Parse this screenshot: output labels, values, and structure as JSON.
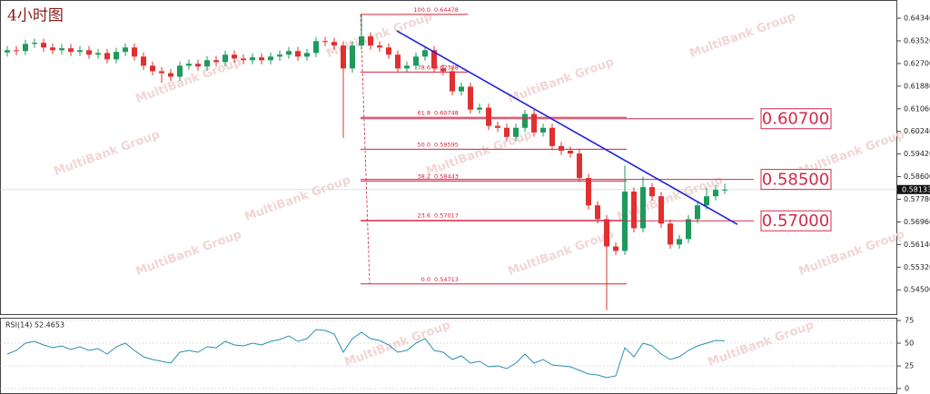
{
  "chart_data": [
    {
      "type": "candlestick",
      "title": "4小时图",
      "watermark": "MultiBank Group",
      "up_color": "#1e9a5c",
      "down_color": "#e0302f",
      "open": [
        0.631,
        0.6318,
        0.6315,
        0.6341,
        0.6345,
        0.6328,
        0.6318,
        0.6325,
        0.6312,
        0.6318,
        0.6302,
        0.6308,
        0.6285,
        0.6312,
        0.6328,
        0.6295,
        0.6262,
        0.6242,
        0.6235,
        0.6222,
        0.6262,
        0.6269,
        0.6259,
        0.6282,
        0.6275,
        0.6302,
        0.6288,
        0.6282,
        0.6292,
        0.6282,
        0.6295,
        0.6302,
        0.6315,
        0.6295,
        0.6308,
        0.6351,
        0.6348,
        0.6335,
        0.6252,
        0.6335,
        0.6368,
        0.6335,
        0.6328,
        0.6302,
        0.6252,
        0.6262,
        0.6295,
        0.6318,
        0.6252,
        0.6242,
        0.6169,
        0.6186,
        0.6103,
        0.611,
        0.6044,
        0.6037,
        0.6004,
        0.6037,
        0.6087,
        0.602,
        0.6037,
        0.5971,
        0.5954,
        0.5944,
        0.5855,
        0.5756,
        0.5706,
        0.5607,
        0.5591,
        0.5806,
        0.5673,
        0.5822,
        0.5789,
        0.569,
        0.5614,
        0.5634,
        0.5706,
        0.5756,
        0.5789,
        0.5812
      ],
      "high": [
        0.6333,
        0.6333,
        0.6356,
        0.636,
        0.636,
        0.6343,
        0.634,
        0.634,
        0.6333,
        0.6333,
        0.6323,
        0.6323,
        0.6327,
        0.6343,
        0.6343,
        0.631,
        0.6277,
        0.6257,
        0.625,
        0.6277,
        0.6284,
        0.6284,
        0.6297,
        0.6297,
        0.6317,
        0.6317,
        0.6303,
        0.6307,
        0.6307,
        0.631,
        0.6317,
        0.633,
        0.633,
        0.6323,
        0.6366,
        0.6366,
        0.6363,
        0.635,
        0.635,
        0.6448,
        0.6383,
        0.635,
        0.6343,
        0.6317,
        0.6277,
        0.631,
        0.6333,
        0.6333,
        0.6267,
        0.6257,
        0.6201,
        0.6201,
        0.6125,
        0.6125,
        0.6059,
        0.6052,
        0.6052,
        0.6102,
        0.6102,
        0.6052,
        0.6052,
        0.5986,
        0.5969,
        0.5959,
        0.587,
        0.5771,
        0.5721,
        0.5622,
        0.59,
        0.5821,
        0.586,
        0.5837,
        0.5804,
        0.5705,
        0.5649,
        0.5721,
        0.5771,
        0.582,
        0.583,
        0.5835
      ],
      "low": [
        0.6295,
        0.63,
        0.63,
        0.6326,
        0.6313,
        0.6303,
        0.6303,
        0.6297,
        0.6297,
        0.6287,
        0.6287,
        0.627,
        0.627,
        0.6297,
        0.628,
        0.6247,
        0.6227,
        0.62,
        0.6207,
        0.6207,
        0.6247,
        0.6244,
        0.6244,
        0.626,
        0.626,
        0.6273,
        0.6267,
        0.6267,
        0.6267,
        0.6267,
        0.628,
        0.6287,
        0.628,
        0.628,
        0.6293,
        0.6333,
        0.632,
        0.6,
        0.6237,
        0.632,
        0.632,
        0.6313,
        0.6287,
        0.6237,
        0.6237,
        0.6247,
        0.628,
        0.6237,
        0.6227,
        0.6154,
        0.6154,
        0.6088,
        0.6088,
        0.6029,
        0.6022,
        0.5989,
        0.5989,
        0.6022,
        0.6005,
        0.6005,
        0.5956,
        0.5939,
        0.5929,
        0.584,
        0.5741,
        0.5691,
        0.5376,
        0.5576,
        0.5576,
        0.5658,
        0.5658,
        0.5774,
        0.5675,
        0.5599,
        0.5599,
        0.5619,
        0.5691,
        0.5741,
        0.5774,
        0.5797
      ],
      "close": [
        0.6318,
        0.6315,
        0.6341,
        0.6345,
        0.6328,
        0.6318,
        0.6325,
        0.6312,
        0.6318,
        0.6302,
        0.6308,
        0.6285,
        0.6312,
        0.6328,
        0.6295,
        0.6262,
        0.6242,
        0.6235,
        0.6222,
        0.6262,
        0.6269,
        0.6259,
        0.6282,
        0.6275,
        0.6302,
        0.6288,
        0.6282,
        0.6292,
        0.6282,
        0.6295,
        0.6302,
        0.6315,
        0.6295,
        0.6308,
        0.6351,
        0.6348,
        0.6335,
        0.6252,
        0.6335,
        0.6368,
        0.6335,
        0.6328,
        0.6302,
        0.6252,
        0.6262,
        0.6295,
        0.6318,
        0.6252,
        0.6242,
        0.6169,
        0.6186,
        0.6103,
        0.611,
        0.6044,
        0.6037,
        0.6004,
        0.6037,
        0.6087,
        0.602,
        0.6037,
        0.5971,
        0.5954,
        0.5944,
        0.5855,
        0.5756,
        0.5706,
        0.5607,
        0.5591,
        0.5806,
        0.5673,
        0.5822,
        0.5789,
        0.569,
        0.5614,
        0.5634,
        0.5706,
        0.5756,
        0.5789,
        0.5812,
        0.5813
      ],
      "xlim": [
        -0.8,
        98
      ],
      "ylim": [
        0.5362,
        0.65
      ],
      "yticks": [
        {
          "value": 0.6434,
          "label": "0.64340"
        },
        {
          "value": 0.6352,
          "label": "0.63520"
        },
        {
          "value": 0.627,
          "label": "0.62700"
        },
        {
          "value": 0.6188,
          "label": "0.61880"
        },
        {
          "value": 0.6106,
          "label": "0.61060"
        },
        {
          "value": 0.6024,
          "label": "0.60240"
        },
        {
          "value": 0.5942,
          "label": "0.59420"
        },
        {
          "value": 0.586,
          "label": "0.58600"
        },
        {
          "value": 0.5778,
          "label": "0.57780"
        },
        {
          "value": 0.5696,
          "label": "0.56960"
        },
        {
          "value": 0.5614,
          "label": "0.56140"
        },
        {
          "value": 0.5532,
          "label": "0.55320"
        },
        {
          "value": 0.545,
          "label": "0.54500"
        }
      ],
      "last_price": 0.58133,
      "fibonacci": [
        {
          "ratio": "100.0",
          "value": 0.64478
        },
        {
          "ratio": "78.6",
          "value": 0.62388
        },
        {
          "ratio": "61.8",
          "value": 0.60748
        },
        {
          "ratio": "50.0",
          "value": 0.59595
        },
        {
          "ratio": "38.2",
          "value": 0.58443
        },
        {
          "ratio": "23.6",
          "value": 0.57017
        },
        {
          "ratio": "0.0",
          "value": 0.54713
        }
      ],
      "fib_color": "#d8203a",
      "levels": [
        {
          "value": 0.607,
          "label": "0.60700"
        },
        {
          "value": 0.585,
          "label": "0.58500"
        },
        {
          "value": 0.57,
          "label": "0.57000"
        }
      ],
      "level_color": "#d42a4a",
      "trendline": {
        "x": [
          42.9,
          80.4
        ],
        "y": [
          0.6388,
          0.5687
        ],
        "color": "#1e24d8"
      }
    },
    {
      "type": "line",
      "title": "RSI(14) 52.4653",
      "color": "#2a8fb0",
      "values": [
        38,
        42,
        50,
        52,
        48,
        45,
        47,
        43,
        46,
        42,
        44,
        38,
        46,
        50,
        42,
        35,
        32,
        30,
        28,
        40,
        42,
        40,
        46,
        45,
        52,
        48,
        47,
        50,
        48,
        52,
        54,
        58,
        52,
        55,
        65,
        64,
        60,
        40,
        55,
        62,
        55,
        53,
        48,
        40,
        42,
        50,
        55,
        42,
        40,
        32,
        36,
        28,
        30,
        24,
        25,
        22,
        28,
        38,
        28,
        32,
        26,
        25,
        24,
        20,
        16,
        15,
        12,
        14,
        45,
        35,
        50,
        47,
        38,
        32,
        35,
        42,
        47,
        50,
        53,
        52.4653
      ],
      "xlim": [
        -0.8,
        98
      ],
      "ylim": [
        -6,
        78
      ],
      "yticks": [
        75,
        50,
        25,
        0
      ]
    }
  ]
}
